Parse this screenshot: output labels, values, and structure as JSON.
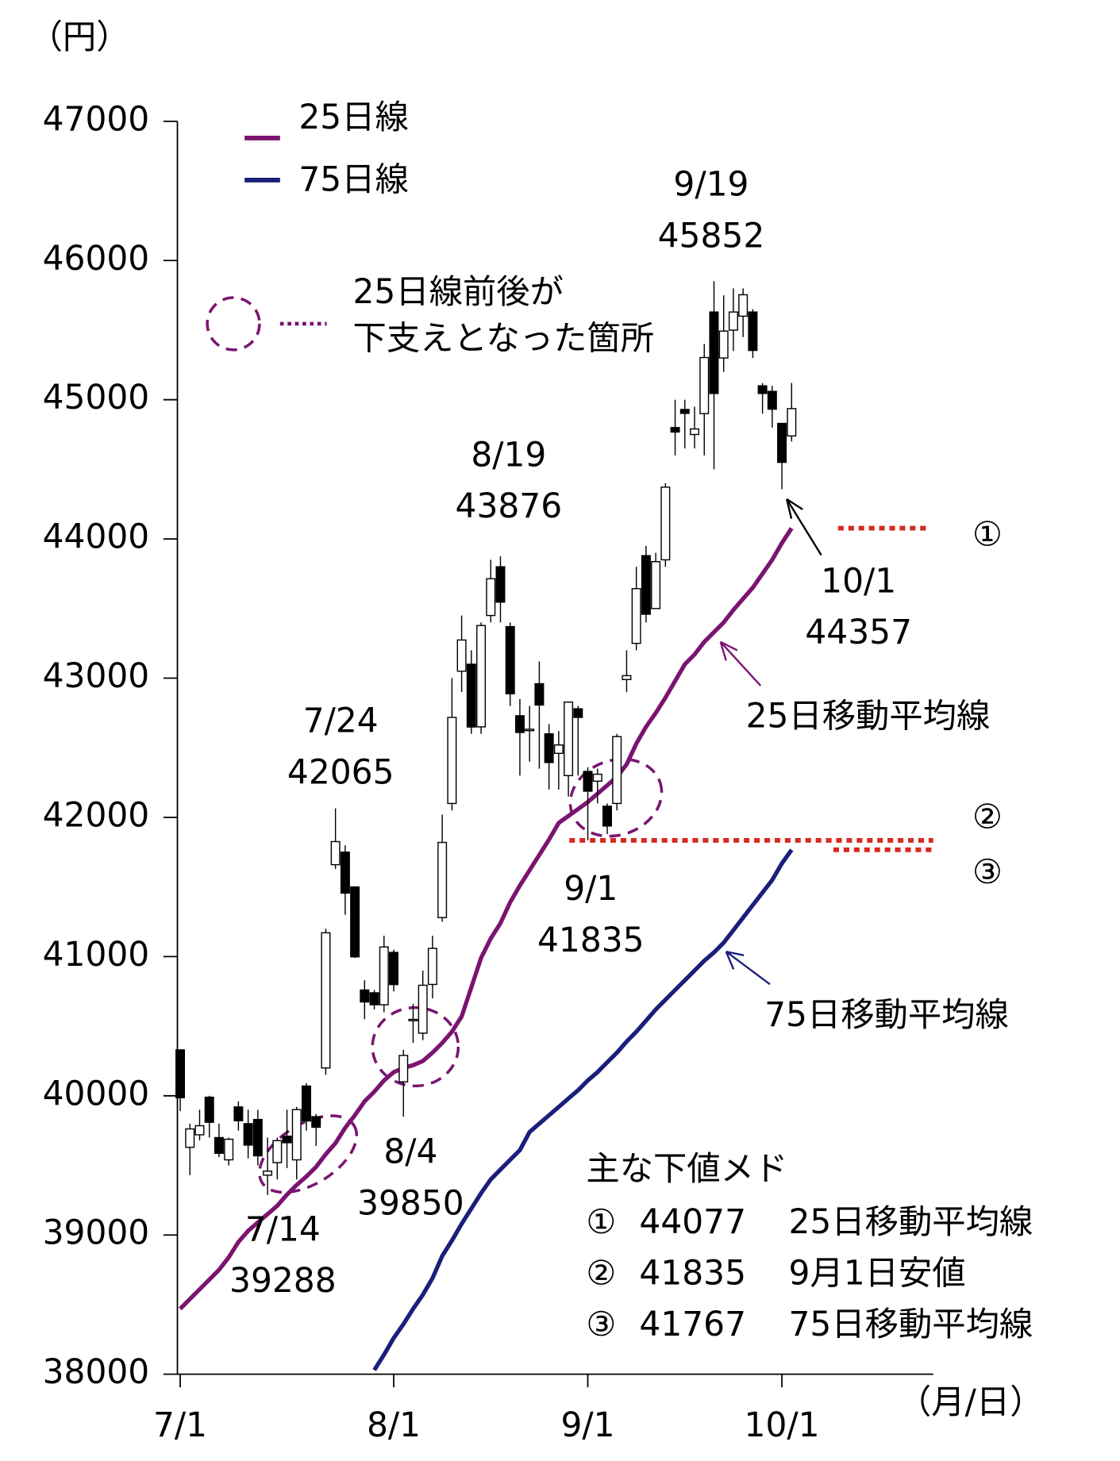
{
  "chart_data": {
    "type": "candlestick",
    "y_label": "（円）",
    "x_label": "（月/日）",
    "ylim": [
      38000,
      47000
    ],
    "yticks": [
      38000,
      39000,
      40000,
      41000,
      42000,
      43000,
      44000,
      45000,
      46000,
      47000
    ],
    "categories": [
      "7/1",
      null,
      null,
      null,
      null,
      null,
      null,
      null,
      null,
      null,
      null,
      null,
      null,
      null,
      null,
      null,
      null,
      null,
      null,
      null,
      null,
      null,
      "8/1",
      null,
      null,
      null,
      null,
      null,
      null,
      null,
      null,
      null,
      null,
      null,
      null,
      null,
      null,
      null,
      null,
      null,
      null,
      null,
      "9/1",
      null,
      null,
      null,
      null,
      null,
      null,
      null,
      null,
      null,
      null,
      null,
      null,
      null,
      null,
      null,
      null,
      null,
      null,
      null,
      "10/1",
      null
    ],
    "open": [
      40330,
      39630,
      39720,
      39990,
      39700,
      39540,
      39920,
      39800,
      39830,
      39430,
      39520,
      39710,
      39540,
      40070,
      39850,
      40200,
      41660,
      41750,
      41500,
      40760,
      40740,
      40654,
      41030,
      40100,
      40540,
      40450,
      40800,
      41280,
      42100,
      43050,
      43100,
      42650,
      43450,
      43800,
      43370,
      42730,
      42630,
      42960,
      42600,
      42460,
      42300,
      42780,
      42330,
      42260,
      42080,
      42100,
      42990,
      43250,
      43880,
      43500,
      43850,
      44800,
      44930,
      44750,
      44900,
      45630,
      45300,
      45500,
      45600,
      45630,
      45100,
      45060,
      44830,
      44740
    ],
    "high": [
      40330,
      39800,
      39900,
      40000,
      39800,
      39700,
      39960,
      39900,
      39900,
      39700,
      39700,
      39900,
      39920,
      40090,
      39870,
      41200,
      42065,
      41800,
      41500,
      40830,
      40760,
      41150,
      41050,
      40330,
      40660,
      40900,
      41150,
      42020,
      43000,
      43450,
      43200,
      43400,
      43850,
      43876,
      43400,
      42850,
      42800,
      43120,
      42670,
      42620,
      42830,
      42800,
      42360,
      42350,
      42100,
      42600,
      43200,
      43800,
      43950,
      43900,
      44400,
      45000,
      45000,
      44950,
      45400,
      45852,
      45750,
      45800,
      45800,
      45650,
      45120,
      45100,
      44830,
      45120
    ],
    "low": [
      39890,
      39430,
      39680,
      39700,
      39560,
      39500,
      39750,
      39550,
      39500,
      39288,
      39400,
      39480,
      39400,
      39750,
      39640,
      40150,
      41630,
      41300,
      40990,
      40550,
      40620,
      40600,
      40750,
      39850,
      40380,
      40400,
      40700,
      41250,
      42050,
      42900,
      42600,
      42600,
      43400,
      43400,
      42800,
      42300,
      42400,
      42350,
      42200,
      42200,
      42150,
      42300,
      41835,
      42100,
      41880,
      42050,
      42900,
      43200,
      43400,
      43500,
      43800,
      44600,
      44650,
      44650,
      44600,
      44500,
      45200,
      45350,
      45450,
      45300,
      44900,
      44800,
      44357,
      44700
    ],
    "close": [
      39986,
      39762,
      39785,
      39810,
      39587,
      39688,
      39821,
      39646,
      39569,
      39459,
      39678,
      39663,
      39901,
      39819,
      39774,
      41171,
      41826,
      41456,
      40998,
      40674,
      40654,
      41069,
      40799,
      40290,
      40549,
      40794,
      41059,
      41820,
      42718,
      43274,
      42649,
      43378,
      43714,
      43546,
      42888,
      42610,
      42633,
      42807,
      42394,
      42520,
      42828,
      42718,
      42188,
      42310,
      41938,
      42580,
      43018,
      43643,
      43459,
      43837,
      44372,
      44768,
      44902,
      44790,
      45303,
      45045,
      45493,
      45630,
      45754,
      45354,
      45045,
      44932,
      44550,
      44936
    ],
    "series": [
      {
        "name": "25日線",
        "label": "25日移動平均線",
        "color": "#7a1470",
        "values": [
          38470,
          38540,
          38610,
          38680,
          38750,
          38840,
          38950,
          39030,
          39090,
          39150,
          39210,
          39290,
          39360,
          39420,
          39490,
          39580,
          39660,
          39770,
          39860,
          39960,
          40030,
          40110,
          40170,
          40200,
          40220,
          40250,
          40310,
          40380,
          40460,
          40570,
          40780,
          40990,
          41130,
          41240,
          41390,
          41510,
          41620,
          41730,
          41840,
          41960,
          42010,
          42060,
          42110,
          42170,
          42230,
          42290,
          42380,
          42530,
          42650,
          42750,
          42860,
          42980,
          43100,
          43170,
          43260,
          43330,
          43400,
          43490,
          43570,
          43650,
          43750,
          43850,
          43970,
          44077
        ]
      },
      {
        "name": "75日線",
        "label": "75日移動平均線",
        "color": "#1a1f7a",
        "values": [
          null,
          null,
          null,
          null,
          null,
          null,
          null,
          null,
          null,
          null,
          null,
          null,
          null,
          null,
          null,
          null,
          null,
          null,
          null,
          null,
          38030,
          38140,
          38260,
          38360,
          38470,
          38570,
          38690,
          38850,
          38960,
          39080,
          39190,
          39300,
          39400,
          39470,
          39540,
          39610,
          39740,
          39800,
          39860,
          39920,
          39980,
          40040,
          40110,
          40170,
          40240,
          40310,
          40390,
          40460,
          40540,
          40620,
          40690,
          40760,
          40830,
          40900,
          40970,
          41030,
          41100,
          41190,
          41280,
          41370,
          41460,
          41550,
          41670,
          41767
        ]
      }
    ],
    "annotations": [
      {
        "date": "7/24",
        "value": 42065
      },
      {
        "date": "8/19",
        "value": 43876
      },
      {
        "date": "9/19",
        "value": 45852
      },
      {
        "date": "10/1",
        "value": 44357
      },
      {
        "date": "9/1",
        "value": 41835
      },
      {
        "date": "8/4",
        "value": 39850
      },
      {
        "date": "7/14",
        "value": 39288
      }
    ],
    "callout": [
      "25日線前後が",
      "下支えとなった箇所"
    ],
    "support_levels": {
      "title": "主な下値メド",
      "items": [
        {
          "marker": "①",
          "value": 44077,
          "label": "25日移動平均線"
        },
        {
          "marker": "②",
          "value": 41835,
          "label": "9月1日安値"
        },
        {
          "marker": "③",
          "value": 41767,
          "label": "75日移動平均線"
        }
      ]
    }
  }
}
